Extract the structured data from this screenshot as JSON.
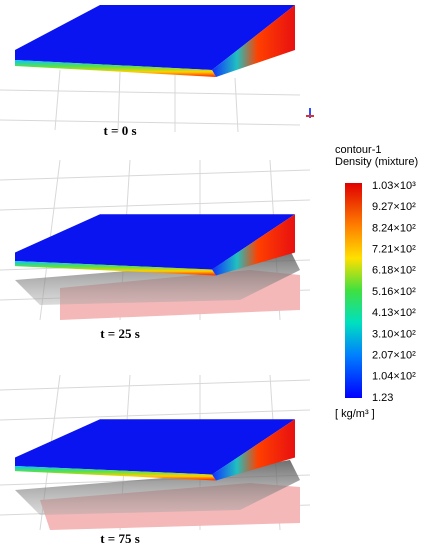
{
  "panels": [
    {
      "label": "t = 0 s"
    },
    {
      "label": "t = 25 s"
    },
    {
      "label": "t = 75 s"
    }
  ],
  "colorbar": {
    "title": "contour-1",
    "subtitle": "Density (mixture)",
    "ticks": [
      "1.03×10³",
      "9.27×10²",
      "8.24×10²",
      "7.21×10²",
      "6.18×10²",
      "5.16×10²",
      "4.13×10²",
      "3.10×10²",
      "2.07×10²",
      "1.04×10²",
      "1.23"
    ],
    "unit": "[ kg/m³ ]"
  }
}
